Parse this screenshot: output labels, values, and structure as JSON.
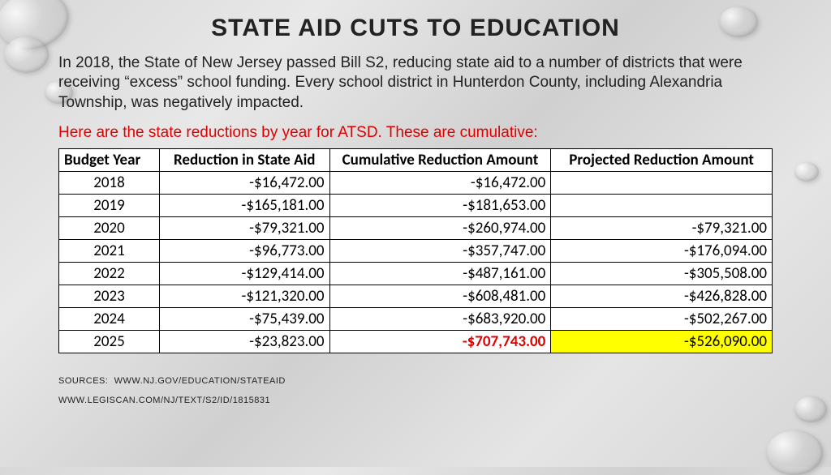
{
  "title": "STATE AID CUTS TO EDUCATION",
  "intro": "In 2018, the State of New Jersey passed Bill S2, reducing state aid to a number of districts that were receiving “excess” school funding.  Every school district in Hunterdon County, including Alexandria Township, was negatively impacted.",
  "subtitle": "Here are the state reductions by year for ATSD.  These are cumulative:",
  "table": {
    "columns": [
      "Budget Year",
      "Reduction in State Aid",
      "Cumulative Reduction Amount",
      "Projected Reduction Amount"
    ],
    "rows": [
      [
        "2018",
        "-$16,472.00",
        "-$16,472.00",
        ""
      ],
      [
        "2019",
        "-$165,181.00",
        "-$181,653.00",
        ""
      ],
      [
        "2020",
        "-$79,321.00",
        "-$260,974.00",
        "-$79,321.00"
      ],
      [
        "2021",
        "-$96,773.00",
        "-$357,747.00",
        "-$176,094.00"
      ],
      [
        "2022",
        "-$129,414.00",
        "-$487,161.00",
        "-$305,508.00"
      ],
      [
        "2023",
        "-$121,320.00",
        "-$608,481.00",
        "-$426,828.00"
      ],
      [
        "2024",
        "-$75,439.00",
        "-$683,920.00",
        "-$502,267.00"
      ],
      [
        "2025",
        "-$23,823.00",
        "-$707,743.00",
        "-$526,090.00"
      ]
    ],
    "highlight_row_index": 7,
    "highlight_cumulative_class": "hl-red",
    "highlight_projected_bg": "hl-yellow"
  },
  "sources": {
    "label": "SOURCES:",
    "line1": "WWW.NJ.GOV/EDUCATION/STATEAID",
    "line2": "WWW.LEGISCAN.COM/NJ/TEXT/S2/ID/1815831"
  }
}
